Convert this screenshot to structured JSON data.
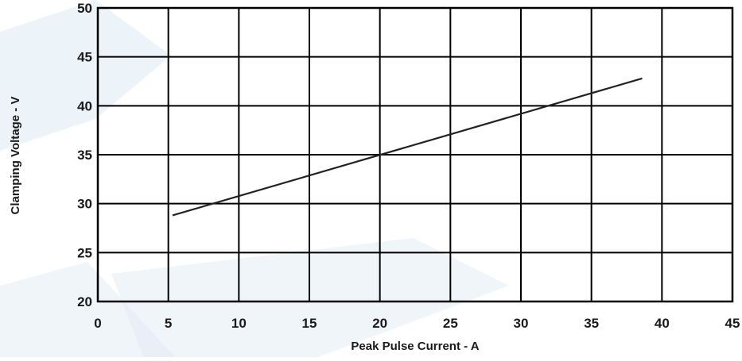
{
  "chart_data": {
    "type": "line",
    "title": "",
    "xlabel": "Peak Pulse Current - A",
    "ylabel": "Clamping Voltage - V",
    "xlim": [
      0,
      45
    ],
    "ylim": [
      20,
      50
    ],
    "x_ticks": [
      0,
      5,
      10,
      15,
      20,
      25,
      30,
      35,
      40,
      45
    ],
    "y_ticks": [
      20,
      25,
      30,
      35,
      40,
      45,
      50
    ],
    "x_tick_labels": [
      "0",
      "5",
      "10",
      "15",
      "20",
      "25",
      "30",
      "35",
      "40",
      "45"
    ],
    "y_tick_labels": [
      "20",
      "25",
      "30",
      "35",
      "40",
      "45",
      "50"
    ],
    "grid": true,
    "series": [
      {
        "x": [
          5.3,
          38.6
        ],
        "y": [
          28.8,
          42.8
        ]
      }
    ],
    "colors": {
      "line": "#222222",
      "grid": "#000000",
      "watermark": "#dde9f4"
    }
  }
}
